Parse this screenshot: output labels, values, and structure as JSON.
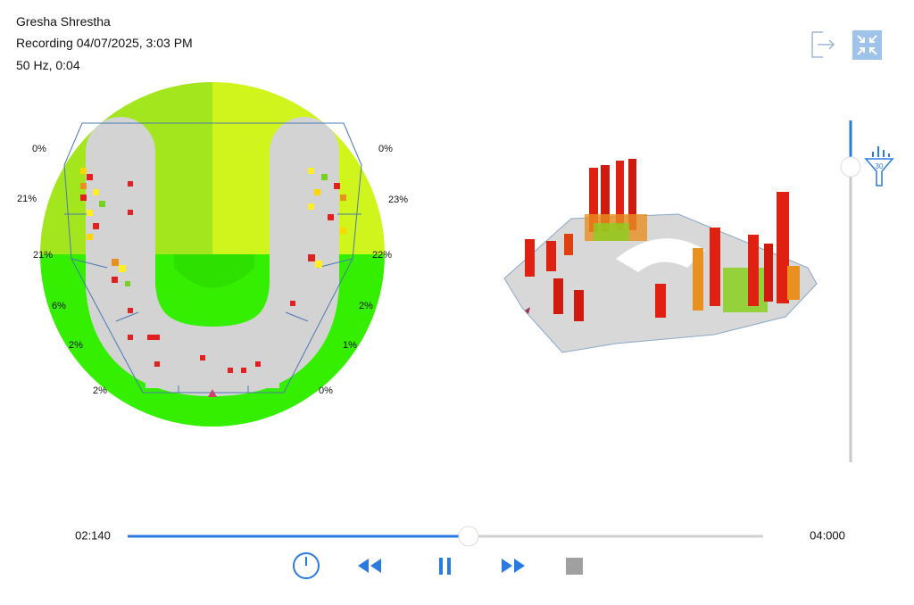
{
  "header": {
    "name": "Gresha  Shrestha",
    "recording": "Recording 04/07/2025, 3:03 PM",
    "info": "50 Hz, 0:04"
  },
  "occlusion_map": {
    "left_labels": [
      "0%",
      "21%",
      "21%",
      "6%",
      "2%",
      "2%"
    ],
    "right_labels": [
      "0%",
      "23%",
      "22%",
      "2%",
      "1%",
      "0%"
    ]
  },
  "filter_slider": {
    "label": "30"
  },
  "playback": {
    "current_time": "02:140",
    "total_time": "04:000"
  }
}
